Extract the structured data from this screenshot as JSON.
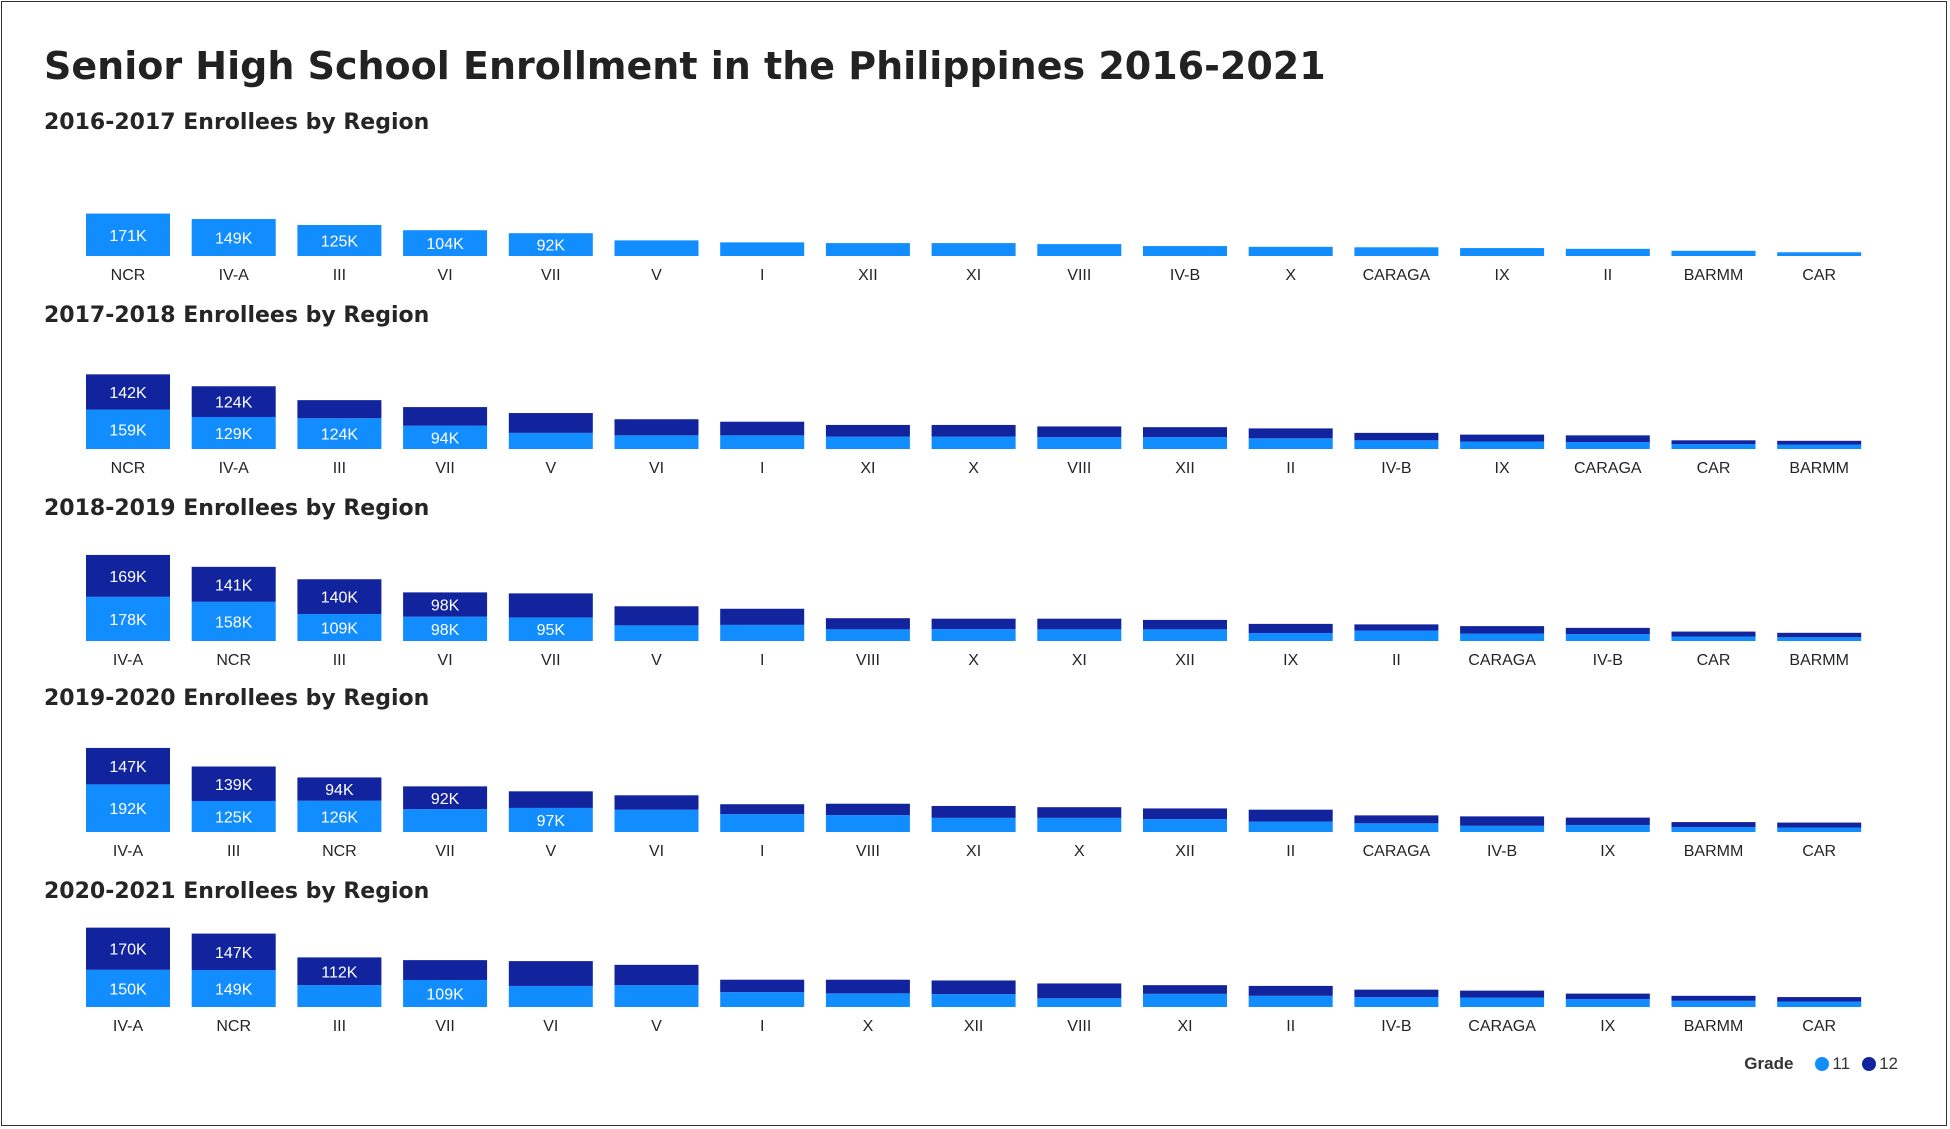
{
  "title": "Senior High School Enrollment in the Philippines 2016-2021",
  "legend": {
    "title": "Grade",
    "items": [
      {
        "label": "11",
        "color": "#118DFF"
      },
      {
        "label": "12",
        "color": "#12239E"
      }
    ]
  },
  "chart_data": [
    {
      "type": "bar",
      "stacked": true,
      "title": "2016-2017 Enrollees by Region",
      "categories": [
        "NCR",
        "IV-A",
        "III",
        "VI",
        "VII",
        "V",
        "I",
        "XII",
        "XI",
        "VIII",
        "IV-B",
        "X",
        "CARAGA",
        "IX",
        "II",
        "BARMM",
        "CAR"
      ],
      "series": [
        {
          "name": "11",
          "values": [
            171,
            149,
            125,
            104,
            92,
            63,
            55,
            52,
            52,
            48,
            40,
            37,
            35,
            32,
            29,
            21,
            15
          ],
          "labels": [
            "171K",
            "149K",
            "125K",
            "104K",
            "92K",
            "",
            "",
            "",
            "",
            "",
            "",
            "",
            "",
            "",
            "",
            "",
            ""
          ]
        },
        {
          "name": "12",
          "values": [
            0,
            0,
            0,
            0,
            0,
            0,
            0,
            0,
            0,
            0,
            0,
            0,
            0,
            0,
            0,
            0,
            0
          ],
          "labels": [
            "",
            "",
            "",
            "",
            "",
            "",
            "",
            "",
            "",
            "",
            "",
            "",
            "",
            "",
            "",
            "",
            ""
          ]
        }
      ]
    },
    {
      "type": "bar",
      "stacked": true,
      "title": "2017-2018 Enrollees by Region",
      "categories": [
        "NCR",
        "IV-A",
        "III",
        "VII",
        "V",
        "VI",
        "I",
        "XI",
        "X",
        "VIII",
        "XII",
        "II",
        "IV-B",
        "IX",
        "CARAGA",
        "CAR",
        "BARMM"
      ],
      "series": [
        {
          "name": "11",
          "values": [
            159,
            129,
            124,
            94,
            65,
            55,
            55,
            50,
            50,
            48,
            48,
            43,
            35,
            30,
            28,
            20,
            18
          ],
          "labels": [
            "159K",
            "129K",
            "124K",
            "94K",
            "",
            "",
            "",
            "",
            "",
            "",
            "",
            "",
            "",
            "",
            "",
            "",
            ""
          ]
        },
        {
          "name": "12",
          "values": [
            142,
            124,
            73,
            75,
            80,
            65,
            55,
            47,
            47,
            43,
            40,
            40,
            30,
            28,
            27,
            15,
            15
          ],
          "labels": [
            "142K",
            "124K",
            "",
            "",
            "",
            "",
            "",
            "",
            "",
            "",
            "",
            "",
            "",
            "",
            "",
            "",
            ""
          ]
        }
      ]
    },
    {
      "type": "bar",
      "stacked": true,
      "title": "2018-2019 Enrollees by Region",
      "categories": [
        "IV-A",
        "NCR",
        "III",
        "VI",
        "VII",
        "V",
        "I",
        "VIII",
        "X",
        "XI",
        "XII",
        "IX",
        "II",
        "CARAGA",
        "IV-B",
        "CAR",
        "BARMM"
      ],
      "series": [
        {
          "name": "11",
          "values": [
            178,
            158,
            109,
            98,
            95,
            63,
            65,
            47,
            48,
            47,
            47,
            32,
            42,
            30,
            28,
            18,
            15
          ],
          "labels": [
            "178K",
            "158K",
            "109K",
            "98K",
            "95K",
            "",
            "",
            "",
            "",
            "",
            "",
            "",
            "",
            "",
            "",
            "",
            ""
          ]
        },
        {
          "name": "12",
          "values": [
            169,
            141,
            140,
            98,
            97,
            77,
            65,
            45,
            42,
            43,
            38,
            37,
            25,
            30,
            25,
            20,
            18
          ],
          "labels": [
            "169K",
            "141K",
            "140K",
            "98K",
            "",
            "",
            "",
            "",
            "",
            "",
            "",
            "",
            "",
            "",
            "",
            "",
            ""
          ]
        }
      ]
    },
    {
      "type": "bar",
      "stacked": true,
      "title": "2019-2020 Enrollees by Region",
      "categories": [
        "IV-A",
        "III",
        "NCR",
        "VII",
        "V",
        "VI",
        "I",
        "VIII",
        "XI",
        "X",
        "XII",
        "II",
        "CARAGA",
        "IV-B",
        "IX",
        "BARMM",
        "CAR"
      ],
      "series": [
        {
          "name": "11",
          "values": [
            192,
            125,
            126,
            92,
            97,
            90,
            72,
            68,
            57,
            57,
            52,
            42,
            35,
            25,
            28,
            20,
            18
          ],
          "labels": [
            "192K",
            "125K",
            "126K",
            "",
            "97K",
            "",
            "",
            "",
            "",
            "",
            "",
            "",
            "",
            "",
            "",
            "",
            ""
          ]
        },
        {
          "name": "12",
          "values": [
            147,
            139,
            94,
            92,
            67,
            58,
            40,
            46,
            48,
            43,
            43,
            48,
            32,
            38,
            30,
            20,
            20
          ],
          "labels": [
            "147K",
            "139K",
            "94K",
            "92K",
            "",
            "",
            "",
            "",
            "",
            "",
            "",
            "",
            "",
            "",
            "",
            "",
            ""
          ]
        }
      ]
    },
    {
      "type": "bar",
      "stacked": true,
      "title": "2020-2021 Enrollees by Region",
      "categories": [
        "IV-A",
        "NCR",
        "III",
        "VII",
        "VI",
        "V",
        "I",
        "X",
        "XII",
        "VIII",
        "XI",
        "II",
        "IV-B",
        "CARAGA",
        "IX",
        "BARMM",
        "CAR"
      ],
      "series": [
        {
          "name": "11",
          "values": [
            150,
            149,
            88,
            109,
            85,
            88,
            60,
            55,
            52,
            35,
            53,
            45,
            40,
            38,
            32,
            25,
            22
          ],
          "labels": [
            "150K",
            "149K",
            "",
            "109K",
            "",
            "",
            "",
            "",
            "",
            "",
            "",
            "",
            "",
            "",
            "",
            "",
            ""
          ]
        },
        {
          "name": "12",
          "values": [
            170,
            147,
            112,
            80,
            100,
            82,
            50,
            55,
            55,
            60,
            35,
            40,
            30,
            28,
            22,
            20,
            18
          ],
          "labels": [
            "170K",
            "147K",
            "112K",
            "",
            "",
            "",
            "",
            "",
            "",
            "",
            "",
            "",
            "",
            "",
            "",
            "",
            ""
          ]
        }
      ]
    }
  ]
}
